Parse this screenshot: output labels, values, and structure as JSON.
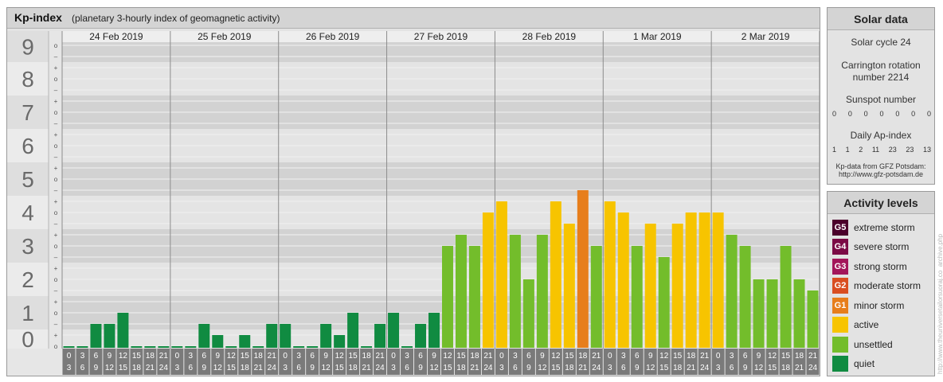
{
  "header": {
    "title": "Kp-index",
    "subtitle": "(planetary 3-hourly index of geomagnetic activity)"
  },
  "chart_data": {
    "type": "bar",
    "ylim": [
      0,
      9
    ],
    "y_ticks": [
      "0",
      "1",
      "2",
      "3",
      "4",
      "5",
      "6",
      "7",
      "8",
      "9"
    ],
    "minor_tick_labels": [
      "–",
      "o",
      "+"
    ],
    "days": [
      "24 Feb 2019",
      "25 Feb 2019",
      "26 Feb 2019",
      "27 Feb 2019",
      "28 Feb 2019",
      "1 Mar 2019",
      "2 Mar 2019"
    ],
    "slot_start_hours": [
      "0",
      "3",
      "6",
      "9",
      "12",
      "15",
      "18",
      "21"
    ],
    "slot_end_hours": [
      "3",
      "6",
      "9",
      "12",
      "15",
      "18",
      "21",
      "24"
    ],
    "values": [
      0,
      0,
      0.667,
      0.667,
      1,
      0,
      0,
      0,
      0,
      0,
      0.667,
      0.333,
      0,
      0.333,
      0,
      0.667,
      0.667,
      0,
      0,
      0.667,
      0.333,
      1,
      0,
      0.667,
      1,
      0,
      0.667,
      1,
      3,
      3.333,
      3,
      4,
      4.333,
      3.333,
      2,
      3.333,
      4.333,
      3.667,
      4.667,
      3,
      4.333,
      4,
      3,
      3.667,
      2.667,
      3.667,
      4,
      4,
      4,
      3.333,
      3,
      2,
      2,
      3,
      2,
      1.667
    ]
  },
  "level_colors": {
    "quiet": "#108b41",
    "unsettled": "#73bd2b",
    "active": "#f7c400",
    "g1": "#e77e1c",
    "g2": "#d94e21",
    "g3": "#a3165a",
    "g4": "#7b0a45",
    "g5": "#4b002b"
  },
  "solar": {
    "title": "Solar data",
    "cycle": "Solar cycle 24",
    "carrington_line1": "Carrington rotation",
    "carrington_line2": "number 2214",
    "sunspot_label": "Sunspot number",
    "sunspot_values": [
      "0",
      "0",
      "0",
      "0",
      "0",
      "0",
      "0"
    ],
    "ap_label": "Daily Ap-index",
    "ap_values": [
      "1",
      "1",
      "2",
      "11",
      "23",
      "23",
      "13"
    ],
    "source_line1": "Kp-data from GFZ Potsdam:",
    "source_line2": "http://www.gfz-potsdam.de"
  },
  "activity": {
    "title": "Activity levels",
    "items": [
      {
        "badge": "G5",
        "label": "extreme storm",
        "color": "#4b002b"
      },
      {
        "badge": "G4",
        "label": "severe storm",
        "color": "#7b0a45"
      },
      {
        "badge": "G3",
        "label": "strong storm",
        "color": "#a3165a"
      },
      {
        "badge": "G2",
        "label": "moderate storm",
        "color": "#d94e21"
      },
      {
        "badge": "G1",
        "label": "minor storm",
        "color": "#e77e1c"
      },
      {
        "badge": "",
        "label": "active",
        "color": "#f7c400"
      },
      {
        "badge": "",
        "label": "unsettled",
        "color": "#73bd2b"
      },
      {
        "badge": "",
        "label": "quiet",
        "color": "#108b41"
      }
    ]
  },
  "watermark": "http://www.theuniversetailorsuoraj.co_archive.php"
}
